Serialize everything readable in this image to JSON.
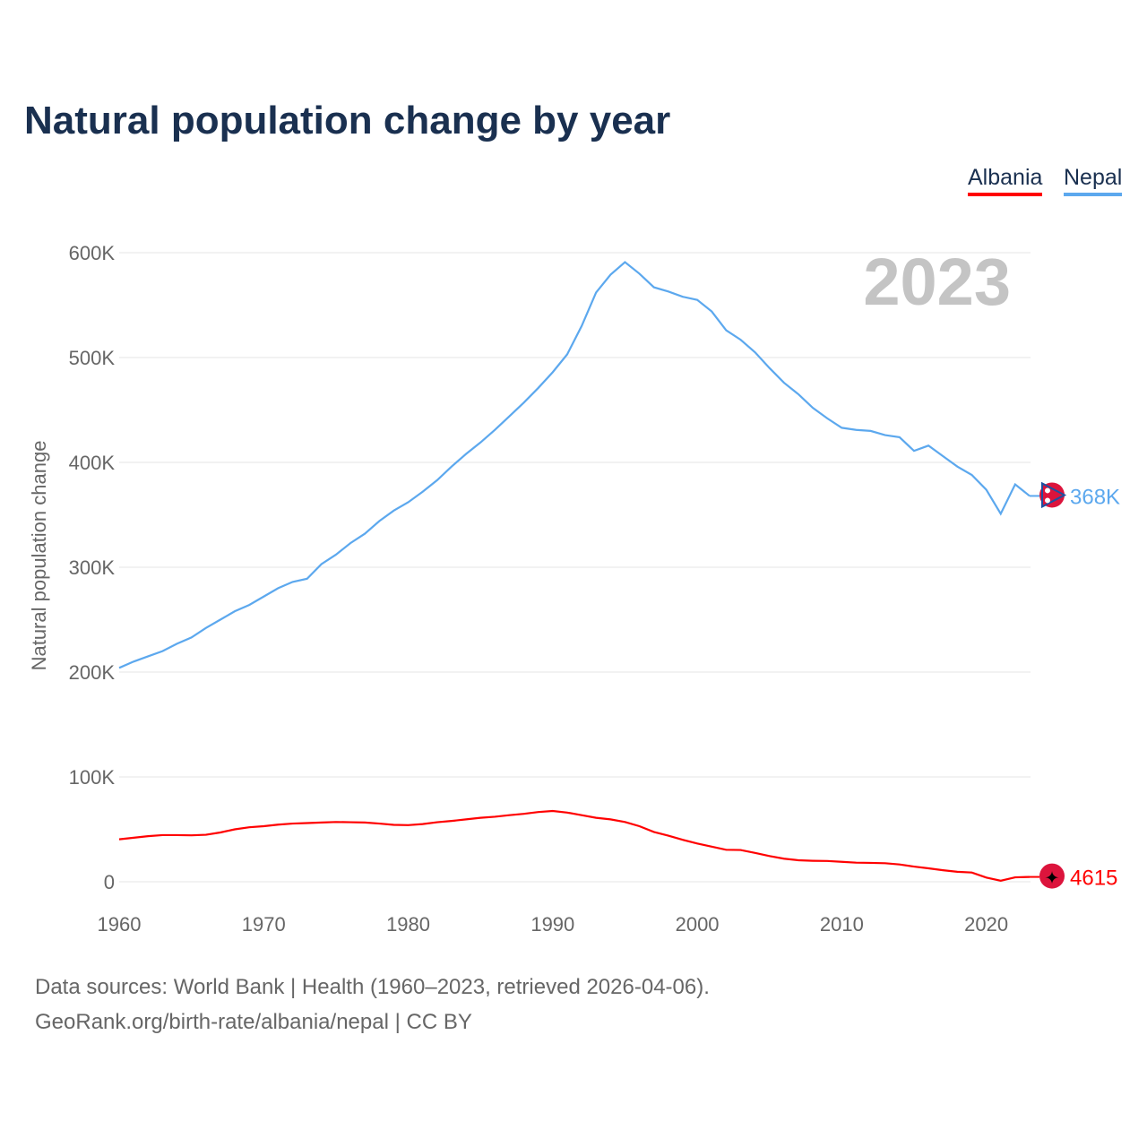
{
  "title": "Natural population change by year",
  "footer": {
    "line1": "Data sources: World Bank | Health (1960–2023, retrieved 2026-04-06).",
    "line2": "GeoRank.org/birth-rate/albania/nepal | CC BY"
  },
  "chart_data": {
    "type": "line",
    "title": "Natural population change by year",
    "ylabel": "Natural population change",
    "xlabel": "",
    "year_label": "2023",
    "xlim": [
      1960,
      2023
    ],
    "ylim": [
      0,
      600000
    ],
    "x_ticks": [
      "1960",
      "1970",
      "1980",
      "1990",
      "2000",
      "2010",
      "2020"
    ],
    "y_ticks": [
      {
        "v": 0,
        "label": "0"
      },
      {
        "v": 100000,
        "label": "100K"
      },
      {
        "v": 200000,
        "label": "200K"
      },
      {
        "v": 300000,
        "label": "300K"
      },
      {
        "v": 400000,
        "label": "400K"
      },
      {
        "v": 500000,
        "label": "500K"
      },
      {
        "v": 600000,
        "label": "600K"
      }
    ],
    "grid": true,
    "legend_position": "top-right",
    "x_start": 1960,
    "series": [
      {
        "name": "Albania",
        "color": "#ff0000",
        "end_label": "4615",
        "flag": "albania-flag",
        "values": [
          40500,
          42000,
          43500,
          44500,
          44500,
          44300,
          44800,
          47000,
          50000,
          52000,
          53000,
          54500,
          55500,
          56000,
          56500,
          57000,
          56800,
          56500,
          55500,
          54300,
          54000,
          55000,
          56800,
          58000,
          59500,
          61000,
          62000,
          63500,
          64800,
          66500,
          67500,
          66000,
          63500,
          61000,
          59500,
          57000,
          53000,
          47500,
          44000,
          40000,
          36500,
          33500,
          30500,
          30300,
          27500,
          24500,
          22000,
          20500,
          20000,
          19800,
          19000,
          18200,
          18000,
          17700,
          16500,
          14500,
          12800,
          11000,
          9500,
          8800,
          4000,
          1000,
          4200,
          4615
        ]
      },
      {
        "name": "Nepal",
        "color": "#5ca8ee",
        "end_label": "368K",
        "flag": "nepal-flag",
        "values": [
          204000,
          210000,
          215000,
          220000,
          227000,
          233000,
          242000,
          250000,
          258000,
          264000,
          272000,
          280000,
          286000,
          289000,
          303000,
          312000,
          323000,
          332000,
          344000,
          354000,
          362000,
          372000,
          383000,
          396000,
          408000,
          419000,
          431000,
          444000,
          457000,
          471000,
          486000,
          503000,
          530000,
          562000,
          579000,
          591000,
          580000,
          567000,
          563000,
          558000,
          555000,
          544000,
          526000,
          517000,
          505000,
          490000,
          476000,
          465000,
          452000,
          442000,
          433000,
          431000,
          430000,
          426000,
          424000,
          411000,
          416000,
          406000,
          396000,
          388000,
          374000,
          351000,
          379000,
          368000
        ]
      }
    ]
  }
}
